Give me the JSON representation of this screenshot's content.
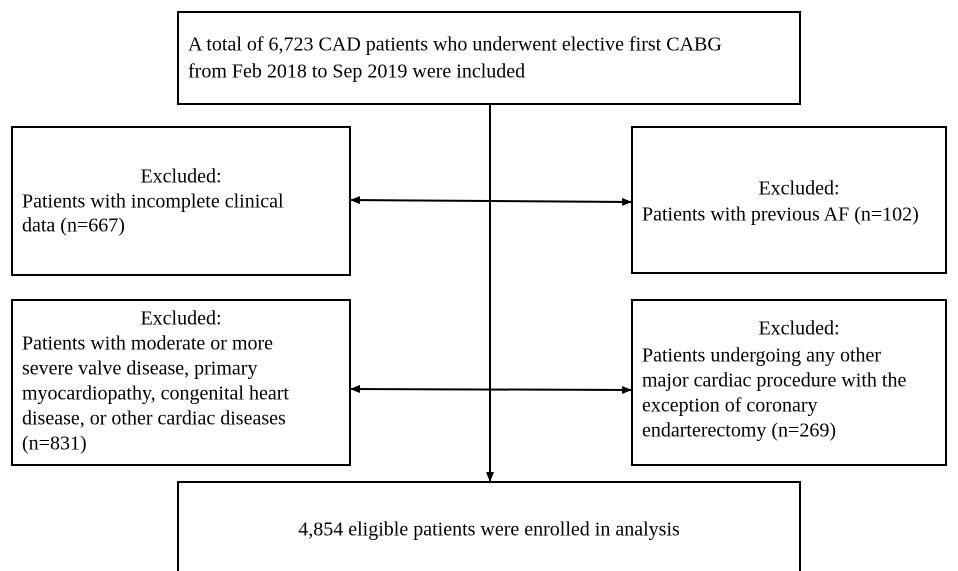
{
  "nodes": [
    {
      "lines": [
        "A total of 6,723 CAD patients who underwent elective first CABG",
        "from Feb 2018 to Sep 2019 were included"
      ]
    },
    {
      "lines": [
        "Excluded:",
        "Patients with incomplete clinical",
        "data (n=667)"
      ]
    },
    {
      "lines": [
        "Excluded:",
        "Patients with previous AF (n=102)"
      ]
    },
    {
      "lines": [
        "Excluded:",
        "Patients with moderate or more",
        "severe valve disease, primary",
        "myocardiopathy, congenital heart",
        "disease, or other cardiac diseases",
        "(n=831)"
      ]
    },
    {
      "lines": [
        "Excluded:",
        "Patients undergoing any other",
        "major cardiac procedure with the",
        "exception of coronary",
        "endarterectomy (n=269)"
      ]
    },
    {
      "lines": [
        "4,854 eligible patients were enrolled in analysis"
      ]
    }
  ]
}
